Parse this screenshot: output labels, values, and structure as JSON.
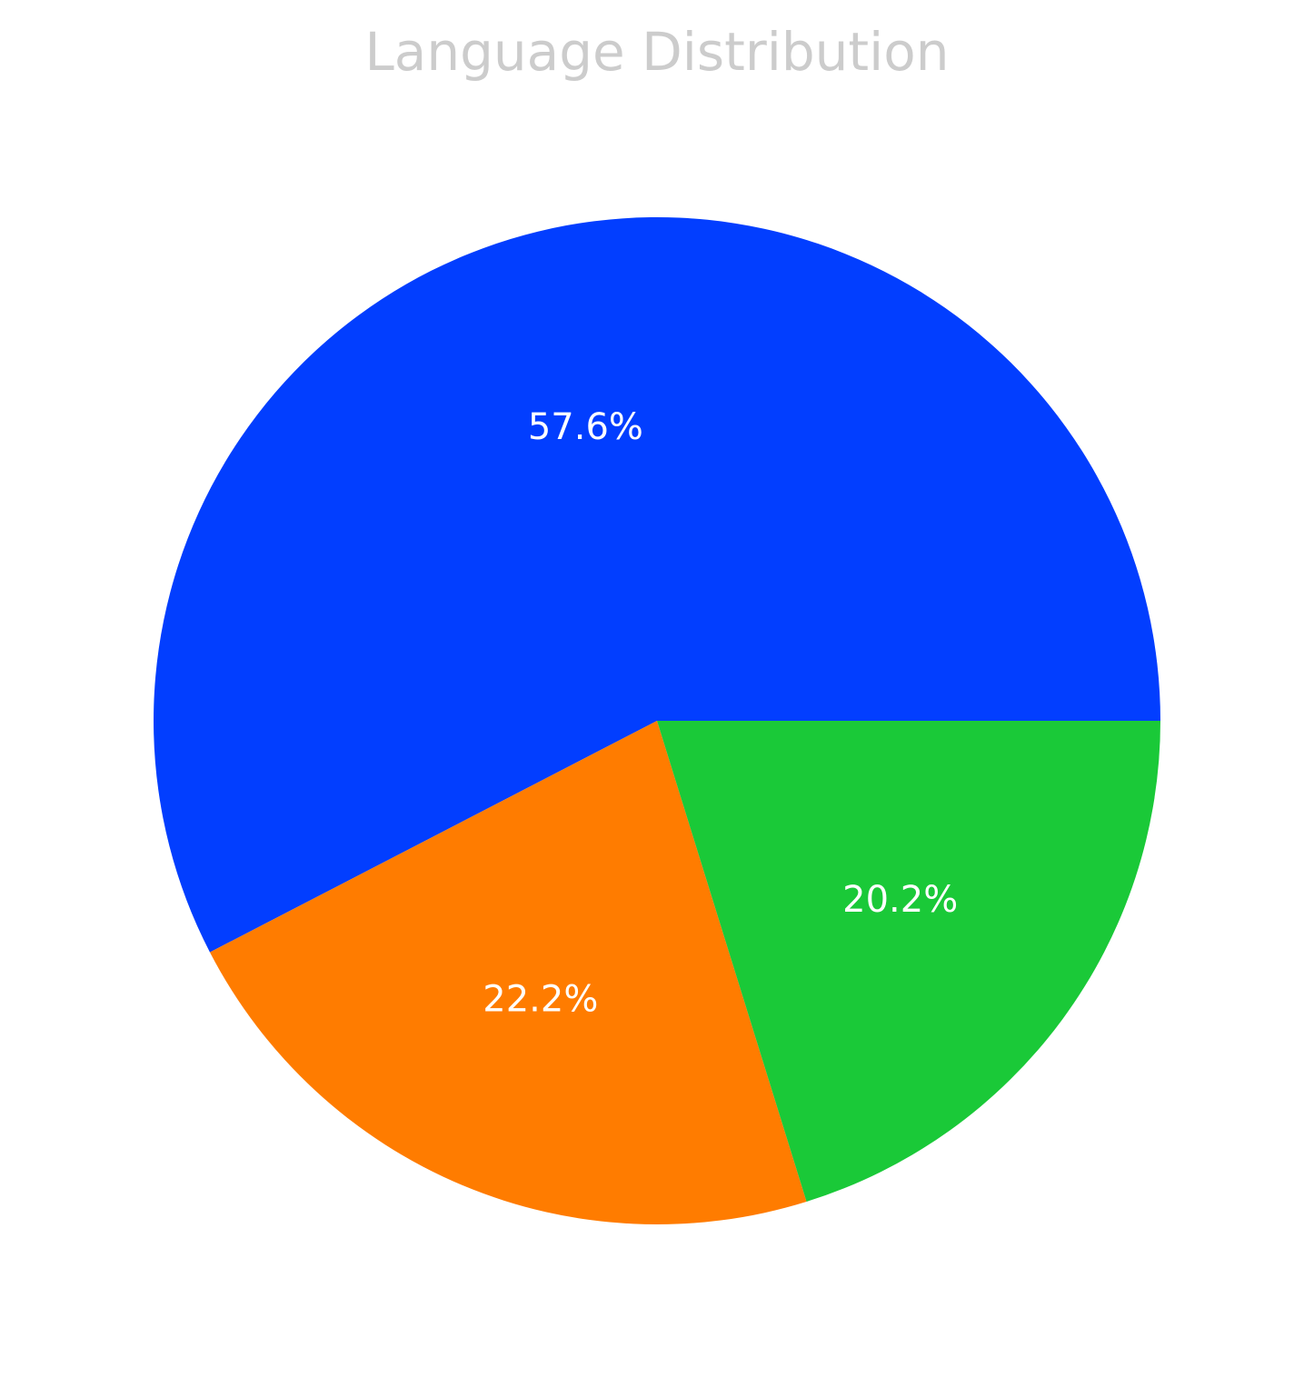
{
  "chart_data": {
    "type": "pie",
    "title": "Language Distribution",
    "slices": [
      {
        "value": 57.6,
        "label": "57.6%",
        "color": "#023eff"
      },
      {
        "value": 22.2,
        "label": "22.2%",
        "color": "#ff7c00"
      },
      {
        "value": 20.2,
        "label": "20.2%",
        "color": "#1ac938"
      }
    ],
    "start_angle_deg": 0,
    "direction": "counterclockwise",
    "background": "#ffffff",
    "title_color": "#cccccc",
    "label_color": "#ffffff"
  }
}
